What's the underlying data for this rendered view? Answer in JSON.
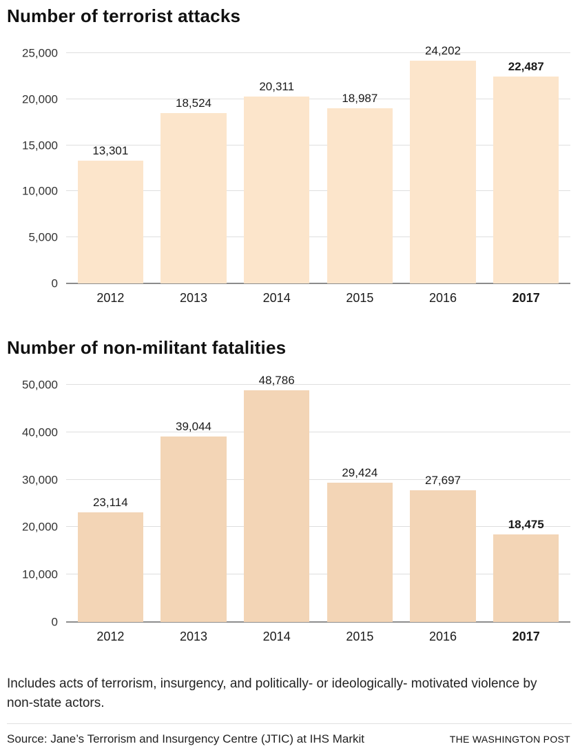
{
  "chart_data": [
    {
      "type": "bar",
      "title": "Number of terrorist attacks",
      "categories": [
        "2012",
        "2013",
        "2014",
        "2015",
        "2016",
        "2017"
      ],
      "values": [
        13301,
        18524,
        20311,
        18987,
        24202,
        22487
      ],
      "value_labels": [
        "13,301",
        "18,524",
        "20,311",
        "18,987",
        "24,202",
        "22,487"
      ],
      "ylim": [
        0,
        25000
      ],
      "yticks": [
        0,
        5000,
        10000,
        15000,
        20000,
        25000
      ],
      "ytick_labels": [
        "0",
        "5,000",
        "10,000",
        "15,000",
        "20,000",
        "25,000"
      ],
      "bar_color": "#fce5cb",
      "grid": true,
      "legend": "none",
      "bold_last_category": true
    },
    {
      "type": "bar",
      "title": "Number of non-militant fatalities",
      "categories": [
        "2012",
        "2013",
        "2014",
        "2015",
        "2016",
        "2017"
      ],
      "values": [
        23114,
        39044,
        48786,
        29424,
        27697,
        18475
      ],
      "value_labels": [
        "23,114",
        "39,044",
        "48,786",
        "29,424",
        "27,697",
        "18,475"
      ],
      "ylim": [
        0,
        50000
      ],
      "yticks": [
        0,
        10000,
        20000,
        30000,
        40000,
        50000
      ],
      "ytick_labels": [
        "0",
        "10,000",
        "20,000",
        "30,000",
        "40,000",
        "50,000"
      ],
      "bar_color": "#f3d5b6",
      "grid": true,
      "legend": "none",
      "bold_last_category": true
    }
  ],
  "footer": {
    "note": "Includes acts of terrorism, insurgency, and politically- or ideologically- motivated violence by non-state actors.",
    "source_label": "Source:",
    "source_text": "Jane’s Terrorism and Insurgency Centre (JTIC) at IHS Markit",
    "credit": "THE WASHINGTON POST"
  }
}
